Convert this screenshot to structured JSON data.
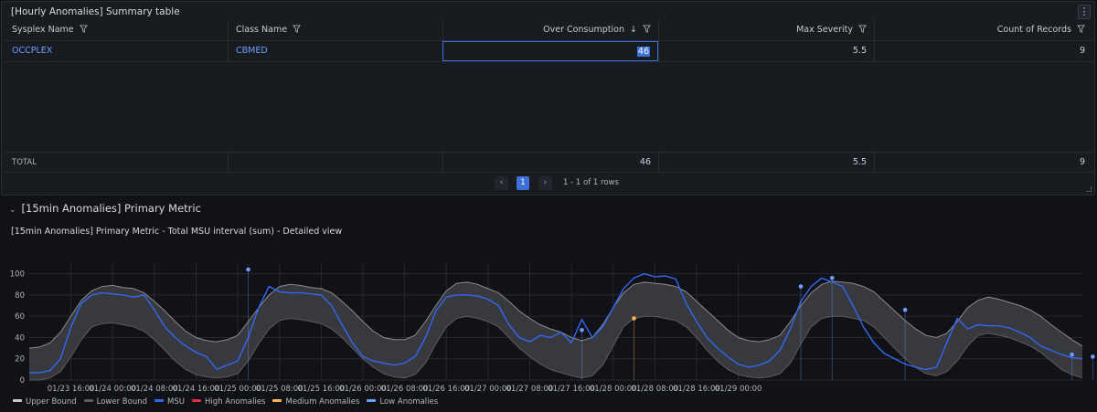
{
  "summary_panel": {
    "title": "[Hourly Anomalies] Summary table",
    "menu_icon": "kebab-menu-icon",
    "columns": [
      {
        "label": "Sysplex Name",
        "filter": true
      },
      {
        "label": "Class Name",
        "filter": true
      },
      {
        "label": "Over Consumption",
        "filter": true,
        "sort": "↓"
      },
      {
        "label": "Max Severity",
        "filter": true
      },
      {
        "label": "Count of Records",
        "filter": true
      }
    ],
    "rows": [
      {
        "sysplex": "OCCPLEX",
        "class": "CBMED",
        "over_consumption": "46",
        "max_severity": "5.5",
        "count": "9"
      }
    ],
    "footer": {
      "label": "TOTAL",
      "over_consumption": "46",
      "max_severity": "5.5",
      "count": "9"
    },
    "pagination": {
      "prev": "‹",
      "current": "1",
      "next": "›",
      "info": "1 - 1 of 1 rows"
    }
  },
  "row_section": {
    "title": "[15min Anomalies] Primary Metric",
    "chevron": "chevron-down-icon"
  },
  "chart_panel": {
    "title": "[15min Anomalies] Primary Metric - Total MSU interval (sum) - Detailed view"
  },
  "legend": [
    {
      "label": "Upper Bound",
      "color": "#c8c9cc"
    },
    {
      "label": "Lower Bound",
      "color": "#5a5c62"
    },
    {
      "label": "MSU",
      "color": "#3268f0"
    },
    {
      "label": "High Anomalies",
      "color": "#e02f44"
    },
    {
      "label": "Medium Anomalies",
      "color": "#ffb357"
    },
    {
      "label": "Low Anomalies",
      "color": "#6e9fff"
    }
  ],
  "chart_data": {
    "type": "line",
    "x_start": "01/23 08:00",
    "x_step_hours": 2,
    "x_ticks": [
      "01/23 16:00",
      "01/24 00:00",
      "01/24 08:00",
      "01/24 16:00",
      "01/25 00:00",
      "01/25 08:00",
      "01/25 16:00",
      "01/26 00:00",
      "01/26 08:00",
      "01/26 16:00",
      "01/27 00:00",
      "01/27 08:00",
      "01/27 16:00",
      "01/28 00:00",
      "01/28 08:00",
      "01/28 16:00",
      "01/29 00:00"
    ],
    "y_ticks": [
      0,
      20,
      40,
      60,
      80,
      100
    ],
    "ylim": [
      0,
      110
    ],
    "series": [
      {
        "name": "Upper Bound",
        "values": [
          30,
          31,
          35,
          45,
          60,
          75,
          84,
          88,
          89,
          87,
          86,
          82,
          74,
          65,
          55,
          46,
          40,
          37,
          36,
          38,
          42,
          55,
          68,
          80,
          88,
          90,
          89,
          87,
          86,
          82,
          74,
          65,
          55,
          46,
          40,
          38,
          38,
          42,
          55,
          70,
          84,
          91,
          92,
          90,
          86,
          82,
          74,
          65,
          58,
          52,
          48,
          45,
          40,
          37,
          40,
          52,
          68,
          82,
          90,
          92,
          91,
          90,
          88,
          83,
          74,
          65,
          56,
          47,
          40,
          37,
          36,
          38,
          42,
          55,
          70,
          82,
          90,
          93,
          92,
          91,
          88,
          83,
          74,
          65,
          56,
          48,
          42,
          40,
          44,
          55,
          68,
          75,
          78,
          76,
          73,
          70,
          66,
          60,
          52,
          45,
          38,
          32
        ]
      },
      {
        "name": "Lower Bound",
        "values": [
          0,
          0,
          2,
          8,
          22,
          38,
          50,
          53,
          54,
          52,
          50,
          46,
          38,
          28,
          18,
          10,
          5,
          3,
          2,
          3,
          6,
          18,
          34,
          48,
          56,
          58,
          57,
          55,
          53,
          48,
          40,
          30,
          20,
          12,
          6,
          3,
          2,
          5,
          16,
          34,
          50,
          58,
          60,
          58,
          55,
          50,
          40,
          30,
          22,
          15,
          10,
          7,
          4,
          2,
          4,
          14,
          32,
          50,
          58,
          60,
          60,
          58,
          56,
          50,
          40,
          28,
          18,
          10,
          5,
          3,
          2,
          3,
          6,
          16,
          34,
          50,
          58,
          60,
          60,
          58,
          56,
          50,
          40,
          30,
          20,
          12,
          6,
          4,
          8,
          18,
          32,
          42,
          44,
          42,
          40,
          36,
          32,
          26,
          18,
          10,
          5,
          2
        ]
      },
      {
        "name": "MSU",
        "values": [
          7,
          7,
          9,
          20,
          50,
          72,
          80,
          82,
          81,
          80,
          78,
          80,
          66,
          50,
          40,
          32,
          26,
          22,
          10,
          14,
          18,
          40,
          68,
          88,
          83,
          82,
          82,
          81,
          80,
          70,
          52,
          35,
          22,
          18,
          16,
          14,
          16,
          22,
          40,
          65,
          78,
          80,
          80,
          79,
          76,
          70,
          52,
          40,
          36,
          42,
          40,
          45,
          35,
          57,
          40,
          50,
          68,
          86,
          96,
          100,
          97,
          98,
          95,
          72,
          55,
          40,
          30,
          22,
          15,
          12,
          14,
          18,
          28,
          48,
          74,
          88,
          96,
          92,
          88,
          70,
          50,
          35,
          25,
          20,
          15,
          12,
          10,
          12,
          35,
          58,
          48,
          52,
          51,
          51,
          49,
          45,
          40,
          32,
          28,
          24,
          21,
          20
        ]
      },
      {
        "name": "Low Anomalies",
        "points": [
          [
            21,
            104
          ],
          [
            53,
            47
          ],
          [
            74,
            88
          ],
          [
            77,
            96
          ],
          [
            84,
            66
          ],
          [
            100,
            24
          ],
          [
            102,
            22
          ]
        ]
      },
      {
        "name": "Medium Anomalies",
        "points": [
          [
            58,
            58
          ]
        ]
      }
    ]
  }
}
